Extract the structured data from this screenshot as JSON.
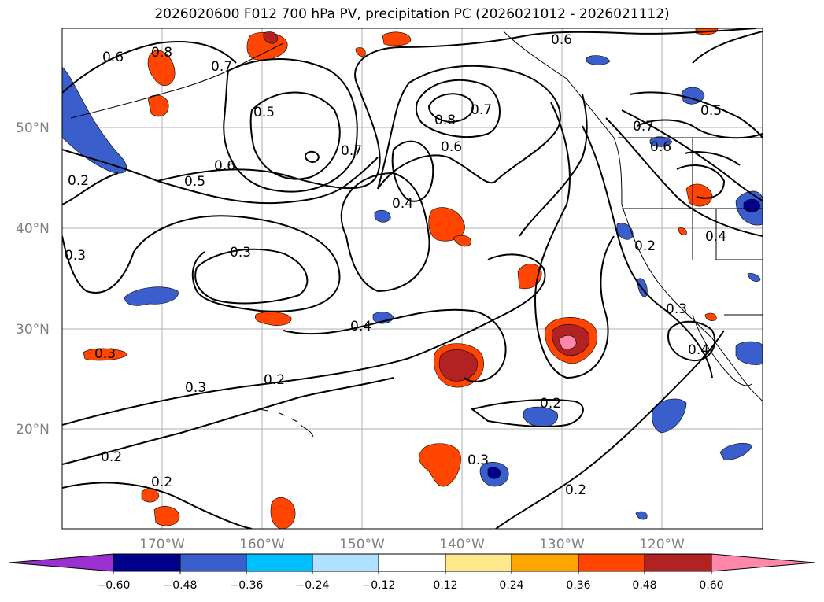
{
  "title": "2026020600 F012 700 hPa PV, precipitation PC (2026021012 - 2026021112)",
  "map": {
    "lon_labels": [
      "170°W",
      "160°W",
      "150°W",
      "140°W",
      "130°W",
      "120°W"
    ],
    "lat_labels": [
      "50°N",
      "40°N",
      "30°N",
      "20°N"
    ],
    "contour_labels": [
      "0.6",
      "0.8",
      "0.7",
      "0.5",
      "0.7",
      "0.6",
      "0.5",
      "0.2",
      "0.3",
      "0.3",
      "0.4",
      "0.8",
      "0.7",
      "0.6",
      "0.4",
      "0.3",
      "0.2",
      "0.3",
      "0.2",
      "0.2",
      "0.2",
      "0.3",
      "0.2",
      "0.6",
      "0.5",
      "0.7",
      "0.6",
      "0.4",
      "0.3",
      "0.4",
      "0.2"
    ],
    "label_color": "#808080",
    "grid_color": "#b0b0b0"
  },
  "colorbar": {
    "ticks": [
      "−0.60",
      "−0.48",
      "−0.36",
      "−0.24",
      "−0.12",
      "0.12",
      "0.24",
      "0.36",
      "0.48",
      "0.60"
    ],
    "colors": [
      "#9b30d0",
      "#00008b",
      "#3a5fcd",
      "#00bfff",
      "#b0e2ff",
      "#ffffff",
      "#ffe88c",
      "#ffa500",
      "#ff4500",
      "#b22222",
      "#ff88aa"
    ]
  }
}
